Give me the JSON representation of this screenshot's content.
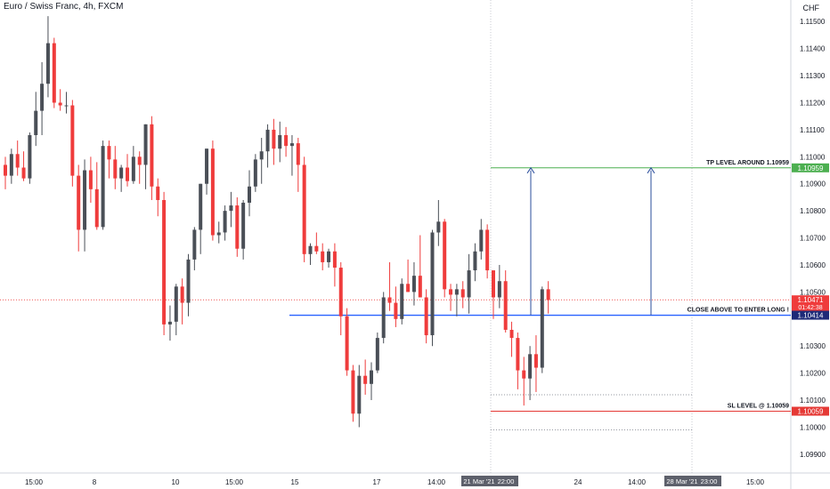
{
  "title": "Euro / Swiss Franc, 4h, FXCM",
  "currency": "CHF",
  "chart_data": {
    "type": "candlestick",
    "ylim": [
      1.0987,
      1.1156
    ],
    "y_ticks": [
      "1.11500",
      "1.11400",
      "1.11300",
      "1.11200",
      "1.11100",
      "1.11000",
      "1.10900",
      "1.10800",
      "1.10700",
      "1.10600",
      "1.10500",
      "1.10300",
      "1.10200",
      "1.10100",
      "1.10000",
      "1.09900"
    ],
    "x_ticks": [
      "15:00",
      "8",
      "10",
      "15:00",
      "15",
      "17",
      "14:00",
      "24",
      "14:00",
      "15:00"
    ],
    "x_highlight_labels": [
      "21 Mar '21",
      "22:00",
      "28 Mar '21",
      "23:00"
    ],
    "colors": {
      "up": "#4a4f57",
      "down": "#ef3c3c",
      "blue_line": "#2962ff",
      "tp_line": "#4caf50",
      "sl_line": "#e53935"
    },
    "candles": [
      [
        1.1097,
        1.11,
        1.1088,
        1.1093
      ],
      [
        1.1093,
        1.1103,
        1.109,
        1.1101
      ],
      [
        1.1101,
        1.1106,
        1.1093,
        1.1096
      ],
      [
        1.1096,
        1.1102,
        1.1091,
        1.1092
      ],
      [
        1.1092,
        1.1109,
        1.109,
        1.1108
      ],
      [
        1.1108,
        1.1124,
        1.1104,
        1.1117
      ],
      [
        1.1117,
        1.1135,
        1.1108,
        1.1127
      ],
      [
        1.1127,
        1.1152,
        1.1122,
        1.1142
      ],
      [
        1.1142,
        1.1144,
        1.1118,
        1.112
      ],
      [
        1.112,
        1.1125,
        1.1117,
        1.1119
      ],
      [
        1.1119,
        1.1124,
        1.1116,
        1.1119
      ],
      [
        1.1119,
        1.1121,
        1.1089,
        1.1093
      ],
      [
        1.1093,
        1.1097,
        1.1065,
        1.1073
      ],
      [
        1.1073,
        1.1099,
        1.1065,
        1.1095
      ],
      [
        1.1095,
        1.11,
        1.1083,
        1.1088
      ],
      [
        1.1088,
        1.1098,
        1.1073,
        1.1074
      ],
      [
        1.1074,
        1.1106,
        1.1073,
        1.1104
      ],
      [
        1.1104,
        1.1106,
        1.1092,
        1.1099
      ],
      [
        1.1099,
        1.1104,
        1.1088,
        1.1092
      ],
      [
        1.1092,
        1.1097,
        1.1087,
        1.1096
      ],
      [
        1.1096,
        1.1101,
        1.1089,
        1.1091
      ],
      [
        1.1091,
        1.1104,
        1.109,
        1.11
      ],
      [
        1.11,
        1.1102,
        1.109,
        1.1097
      ],
      [
        1.1097,
        1.1112,
        1.1088,
        1.1112
      ],
      [
        1.1112,
        1.1115,
        1.1084,
        1.1089
      ],
      [
        1.1089,
        1.1092,
        1.1078,
        1.1084
      ],
      [
        1.1084,
        1.1087,
        1.1034,
        1.1038
      ],
      [
        1.1038,
        1.1045,
        1.1032,
        1.1039
      ],
      [
        1.1039,
        1.1053,
        1.1034,
        1.1052
      ],
      [
        1.1052,
        1.1055,
        1.1038,
        1.1046
      ],
      [
        1.1046,
        1.1064,
        1.1041,
        1.1062
      ],
      [
        1.1062,
        1.1074,
        1.1058,
        1.1073
      ],
      [
        1.1073,
        1.109,
        1.1064,
        1.109
      ],
      [
        1.109,
        1.1103,
        1.1086,
        1.1103
      ],
      [
        1.1103,
        1.1106,
        1.1069,
        1.1071
      ],
      [
        1.1071,
        1.1076,
        1.1068,
        1.1072
      ],
      [
        1.1072,
        1.1082,
        1.1069,
        1.108
      ],
      [
        1.108,
        1.1087,
        1.1074,
        1.1082
      ],
      [
        1.1082,
        1.1085,
        1.1063,
        1.1066
      ],
      [
        1.1066,
        1.1084,
        1.1062,
        1.1083
      ],
      [
        1.1083,
        1.1095,
        1.1078,
        1.1089
      ],
      [
        1.1089,
        1.1101,
        1.1087,
        1.1099
      ],
      [
        1.1099,
        1.1107,
        1.109,
        1.1102
      ],
      [
        1.1102,
        1.1112,
        1.1096,
        1.111
      ],
      [
        1.111,
        1.1114,
        1.1097,
        1.1103
      ],
      [
        1.1103,
        1.1113,
        1.1098,
        1.1108
      ],
      [
        1.1108,
        1.1111,
        1.11,
        1.1104
      ],
      [
        1.1104,
        1.1108,
        1.1093,
        1.1105
      ],
      [
        1.1105,
        1.1107,
        1.1087,
        1.1097
      ],
      [
        1.1097,
        1.11,
        1.1061,
        1.1064
      ],
      [
        1.1064,
        1.1068,
        1.106,
        1.1067
      ],
      [
        1.1067,
        1.1072,
        1.1064,
        1.1065
      ],
      [
        1.1065,
        1.1068,
        1.1058,
        1.1061
      ],
      [
        1.1061,
        1.1066,
        1.1059,
        1.1065
      ],
      [
        1.1065,
        1.1068,
        1.1052,
        1.1059
      ],
      [
        1.1059,
        1.1061,
        1.1034,
        1.1041
      ],
      [
        1.1041,
        1.1044,
        1.1019,
        1.1021
      ],
      [
        1.1021,
        1.1023,
        1.1002,
        1.1005
      ],
      [
        1.1005,
        1.1023,
        1.1,
        1.1019
      ],
      [
        1.1019,
        1.1025,
        1.1012,
        1.1016
      ],
      [
        1.1016,
        1.1024,
        1.101,
        1.1021
      ],
      [
        1.1021,
        1.1035,
        1.102,
        1.1033
      ],
      [
        1.1033,
        1.105,
        1.1031,
        1.1048
      ],
      [
        1.1048,
        1.1061,
        1.1043,
        1.1046
      ],
      [
        1.1046,
        1.1052,
        1.1037,
        1.104
      ],
      [
        1.104,
        1.1055,
        1.1038,
        1.1053
      ],
      [
        1.1053,
        1.1062,
        1.105,
        1.105
      ],
      [
        1.105,
        1.1061,
        1.1045,
        1.1056
      ],
      [
        1.1056,
        1.1071,
        1.1048,
        1.1048
      ],
      [
        1.1048,
        1.1051,
        1.1031,
        1.1034
      ],
      [
        1.1034,
        1.1073,
        1.103,
        1.1072
      ],
      [
        1.1072,
        1.1084,
        1.1067,
        1.1076
      ],
      [
        1.1076,
        1.1077,
        1.1048,
        1.1051
      ],
      [
        1.1051,
        1.1053,
        1.1043,
        1.1049
      ],
      [
        1.1049,
        1.1053,
        1.1041,
        1.1051
      ],
      [
        1.1051,
        1.1054,
        1.1044,
        1.1048
      ],
      [
        1.1048,
        1.1064,
        1.1042,
        1.1058
      ],
      [
        1.1058,
        1.1068,
        1.1054,
        1.1065
      ],
      [
        1.1065,
        1.1077,
        1.1062,
        1.1073
      ],
      [
        1.1073,
        1.1075,
        1.1055,
        1.1058
      ],
      [
        1.1058,
        1.1058,
        1.104,
        1.1048
      ],
      [
        1.1048,
        1.106,
        1.1044,
        1.1054
      ],
      [
        1.1054,
        1.1058,
        1.1035,
        1.1036
      ],
      [
        1.1036,
        1.1039,
        1.1026,
        1.1033
      ],
      [
        1.1033,
        1.1035,
        1.1014,
        1.1021
      ],
      [
        1.1021,
        1.1026,
        1.1008,
        1.1018
      ],
      [
        1.1018,
        1.103,
        1.101,
        1.1027
      ],
      [
        1.1027,
        1.1034,
        1.1013,
        1.1022
      ],
      [
        1.1022,
        1.1052,
        1.102,
        1.1051
      ],
      [
        1.1051,
        1.1054,
        1.1042,
        1.1047
      ]
    ],
    "blue_line": {
      "value": 1.10414
    },
    "tp_line": {
      "value": 1.10959,
      "label": "TP LEVEL AROUND 1.10959"
    },
    "sl_line": {
      "value": 1.10059,
      "label": "SL LEVEL @ 1.10059"
    },
    "entry_label": "CLOSE ABOVE TO ENTER LONG !",
    "grey_dotted_levels": [
      1.1012,
      1.0999
    ],
    "current_price_line": {
      "value": 1.10471
    },
    "price_tags": [
      {
        "value": 1.10959,
        "text": "1.10959",
        "bg": "#4caf50"
      },
      {
        "value": 1.10471,
        "text": "1.10471",
        "bg": "#ef3c3c",
        "sub": "01:42:38"
      },
      {
        "value": 1.10414,
        "text": "1.10414",
        "bg": "#1e2a78"
      },
      {
        "value": 1.10059,
        "text": "1.10059",
        "bg": "#e53935"
      }
    ]
  }
}
